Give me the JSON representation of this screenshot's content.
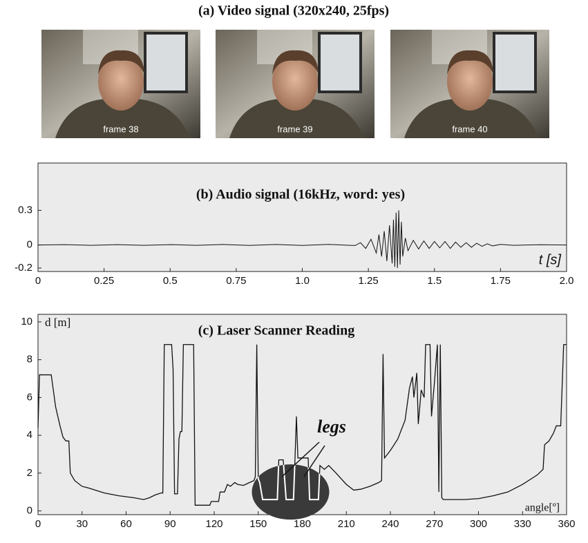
{
  "video_panel": {
    "title": "(a) Video signal (320x240, 25fps)",
    "frames": [
      "frame 38",
      "frame 39",
      "frame 40"
    ]
  },
  "chart_data": [
    {
      "type": "line",
      "title": "(b)  Audio signal (16kHz, word: yes)",
      "x_label": "t [s]",
      "x": [
        0,
        0.1,
        0.2,
        0.3,
        0.4,
        0.5,
        0.6,
        0.7,
        0.8,
        0.9,
        1.0,
        1.1,
        1.2,
        1.22,
        1.24,
        1.26,
        1.28,
        1.29,
        1.3,
        1.31,
        1.32,
        1.33,
        1.34,
        1.345,
        1.35,
        1.355,
        1.36,
        1.365,
        1.37,
        1.375,
        1.38,
        1.39,
        1.4,
        1.42,
        1.44,
        1.46,
        1.48,
        1.5,
        1.52,
        1.54,
        1.56,
        1.58,
        1.6,
        1.62,
        1.64,
        1.66,
        1.68,
        1.7,
        1.72,
        1.75,
        1.8,
        1.9,
        2.0
      ],
      "values": [
        0,
        0.003,
        -0.003,
        0.003,
        -0.003,
        0.003,
        -0.003,
        0.004,
        -0.004,
        0.004,
        -0.004,
        0.005,
        -0.005,
        0.02,
        -0.03,
        0.05,
        -0.07,
        0.09,
        -0.1,
        0.12,
        -0.14,
        0.17,
        -0.16,
        0.22,
        -0.19,
        0.28,
        -0.2,
        0.3,
        -0.17,
        0.2,
        -0.1,
        0.06,
        -0.05,
        0.04,
        -0.035,
        0.035,
        -0.03,
        0.03,
        -0.025,
        0.03,
        -0.03,
        0.025,
        -0.02,
        0.02,
        -0.02,
        0.015,
        -0.012,
        0.01,
        -0.008,
        0.005,
        -0.003,
        0.002,
        0
      ],
      "color": "#111111",
      "xlim": [
        0,
        2
      ],
      "xticks": [
        0,
        0.25,
        0.5,
        0.75,
        {
          "value": 1,
          "label": "1.0"
        },
        1.25,
        1.5,
        1.75,
        {
          "value": 2,
          "label": "2.0"
        }
      ],
      "ylim": [
        -0.23,
        0.71
      ],
      "yticks": [
        -0.2,
        0,
        0.3
      ]
    },
    {
      "type": "line",
      "title": "(c)  Laser Scanner Reading",
      "x_label": "angle[º]",
      "y_label": "d [m]",
      "annotation": "legs",
      "x": [
        0,
        1,
        9,
        12,
        15,
        17,
        19,
        21,
        22,
        25,
        30,
        35,
        45,
        55,
        65,
        72,
        76,
        80,
        84,
        85,
        86,
        91,
        92,
        93,
        95,
        96,
        97,
        98,
        99,
        105,
        106,
        107,
        112,
        117,
        118,
        123,
        124,
        127,
        129,
        131,
        134,
        136,
        140,
        144,
        147,
        148,
        149,
        150,
        151,
        153,
        163,
        164,
        167,
        169,
        174,
        175,
        176,
        177,
        184,
        185,
        191,
        192,
        195,
        198,
        203,
        210,
        215,
        220,
        226,
        232,
        234,
        235,
        236,
        240,
        245,
        250,
        253,
        255,
        256,
        258,
        259,
        261,
        263,
        264,
        267,
        268,
        270,
        272,
        273,
        274,
        275,
        276,
        290,
        300,
        310,
        320,
        330,
        340,
        344,
        345,
        348,
        351,
        353,
        356,
        358,
        360
      ],
      "values": [
        4.4,
        7.2,
        7.2,
        5.5,
        4.5,
        3.9,
        3.7,
        3.7,
        2.0,
        1.6,
        1.3,
        1.2,
        0.95,
        0.8,
        0.7,
        0.6,
        0.7,
        0.85,
        0.95,
        0.95,
        8.8,
        8.8,
        7.5,
        0.9,
        0.9,
        3.8,
        4.2,
        4.2,
        8.8,
        8.8,
        8.8,
        0.3,
        0.3,
        0.3,
        0.5,
        0.5,
        1.0,
        1.0,
        1.4,
        1.3,
        1.5,
        1.4,
        1.35,
        1.5,
        1.6,
        1.8,
        8.8,
        1.7,
        1.5,
        0.6,
        0.6,
        2.7,
        2.7,
        0.6,
        0.6,
        2.7,
        5.0,
        2.8,
        2.8,
        0.6,
        0.6,
        2.4,
        2.2,
        2.4,
        2.0,
        1.4,
        1.1,
        1.15,
        1.3,
        1.5,
        1.6,
        8.3,
        2.8,
        3.2,
        3.8,
        4.8,
        6.5,
        7.1,
        6.0,
        7.3,
        4.6,
        6.4,
        6.0,
        8.8,
        8.8,
        5.0,
        6.8,
        8.8,
        1.0,
        8.8,
        0.7,
        0.6,
        0.6,
        0.65,
        0.8,
        1.0,
        1.4,
        1.9,
        2.2,
        3.5,
        3.7,
        4.1,
        4.5,
        4.5,
        8.8,
        8.8
      ],
      "color": "#111111",
      "xlim": [
        0,
        360
      ],
      "xticks": [
        0,
        30,
        60,
        90,
        120,
        150,
        180,
        210,
        240,
        270,
        300,
        330,
        360
      ],
      "ylim": [
        -0.2,
        10.4
      ],
      "yticks": [
        0,
        2,
        4,
        6,
        8,
        10
      ]
    }
  ]
}
